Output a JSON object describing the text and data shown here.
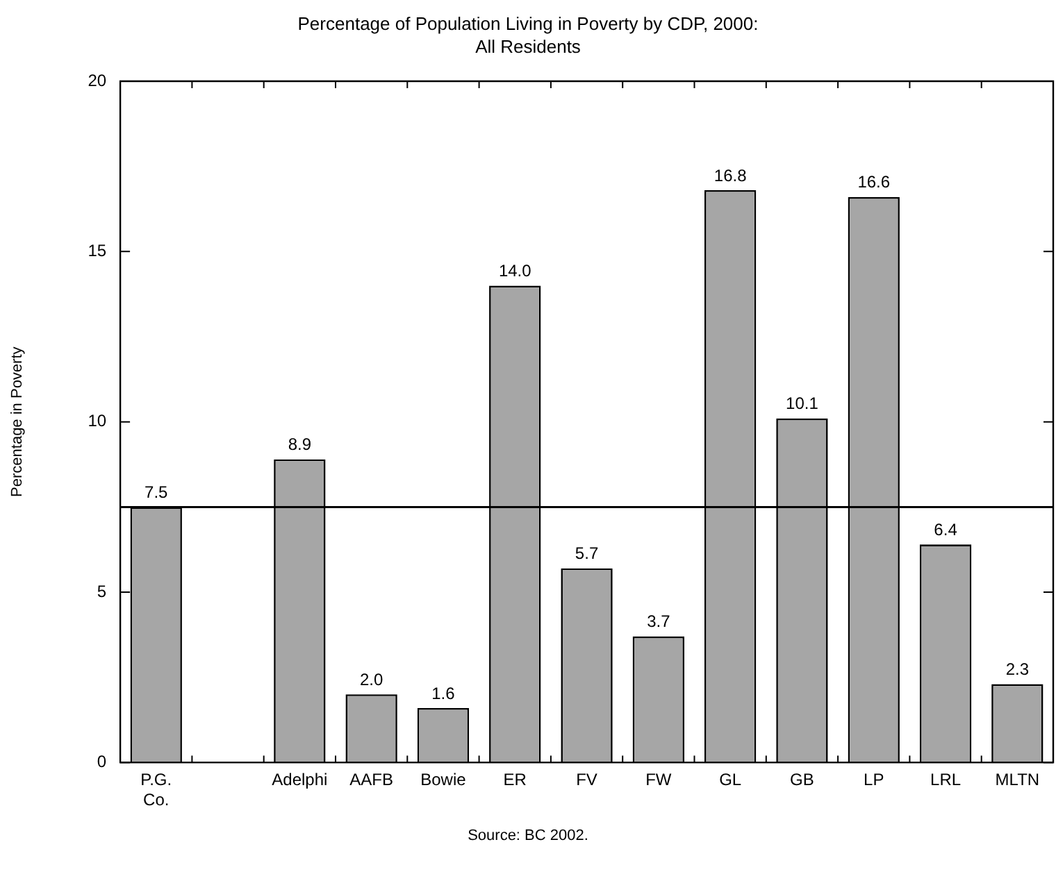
{
  "chart_data": {
    "type": "bar",
    "title": "Percentage of Population Living in Poverty by CDP, 2000:",
    "subtitle": "All Residents",
    "ylabel": "Percentage in Poverty",
    "categories": [
      "P.G. Co.",
      null,
      "Adelphi",
      "AAFB",
      "Bowie",
      "ER",
      "FV",
      "FW",
      "GL",
      "GB",
      "LP",
      "LRL",
      "MLTN"
    ],
    "values": [
      7.5,
      null,
      8.9,
      2.0,
      1.6,
      14.0,
      5.7,
      3.7,
      16.8,
      10.1,
      16.6,
      6.4,
      2.3
    ],
    "value_labels": [
      "7.5",
      null,
      "8.9",
      "2.0",
      "1.6",
      "14.0",
      "5.7",
      "3.7",
      "16.8",
      "10.1",
      "16.6",
      "6.4",
      "2.3"
    ],
    "color": "#a6a6a6",
    "ylim": [
      0,
      20
    ],
    "yticks": [
      0,
      5,
      10,
      15,
      20
    ],
    "grid": false,
    "legend": false,
    "ref_lines": [
      {
        "axis": "y",
        "value": 7.5,
        "color": "#000000"
      }
    ],
    "annotations": [
      "Source:  BC 2002."
    ]
  }
}
